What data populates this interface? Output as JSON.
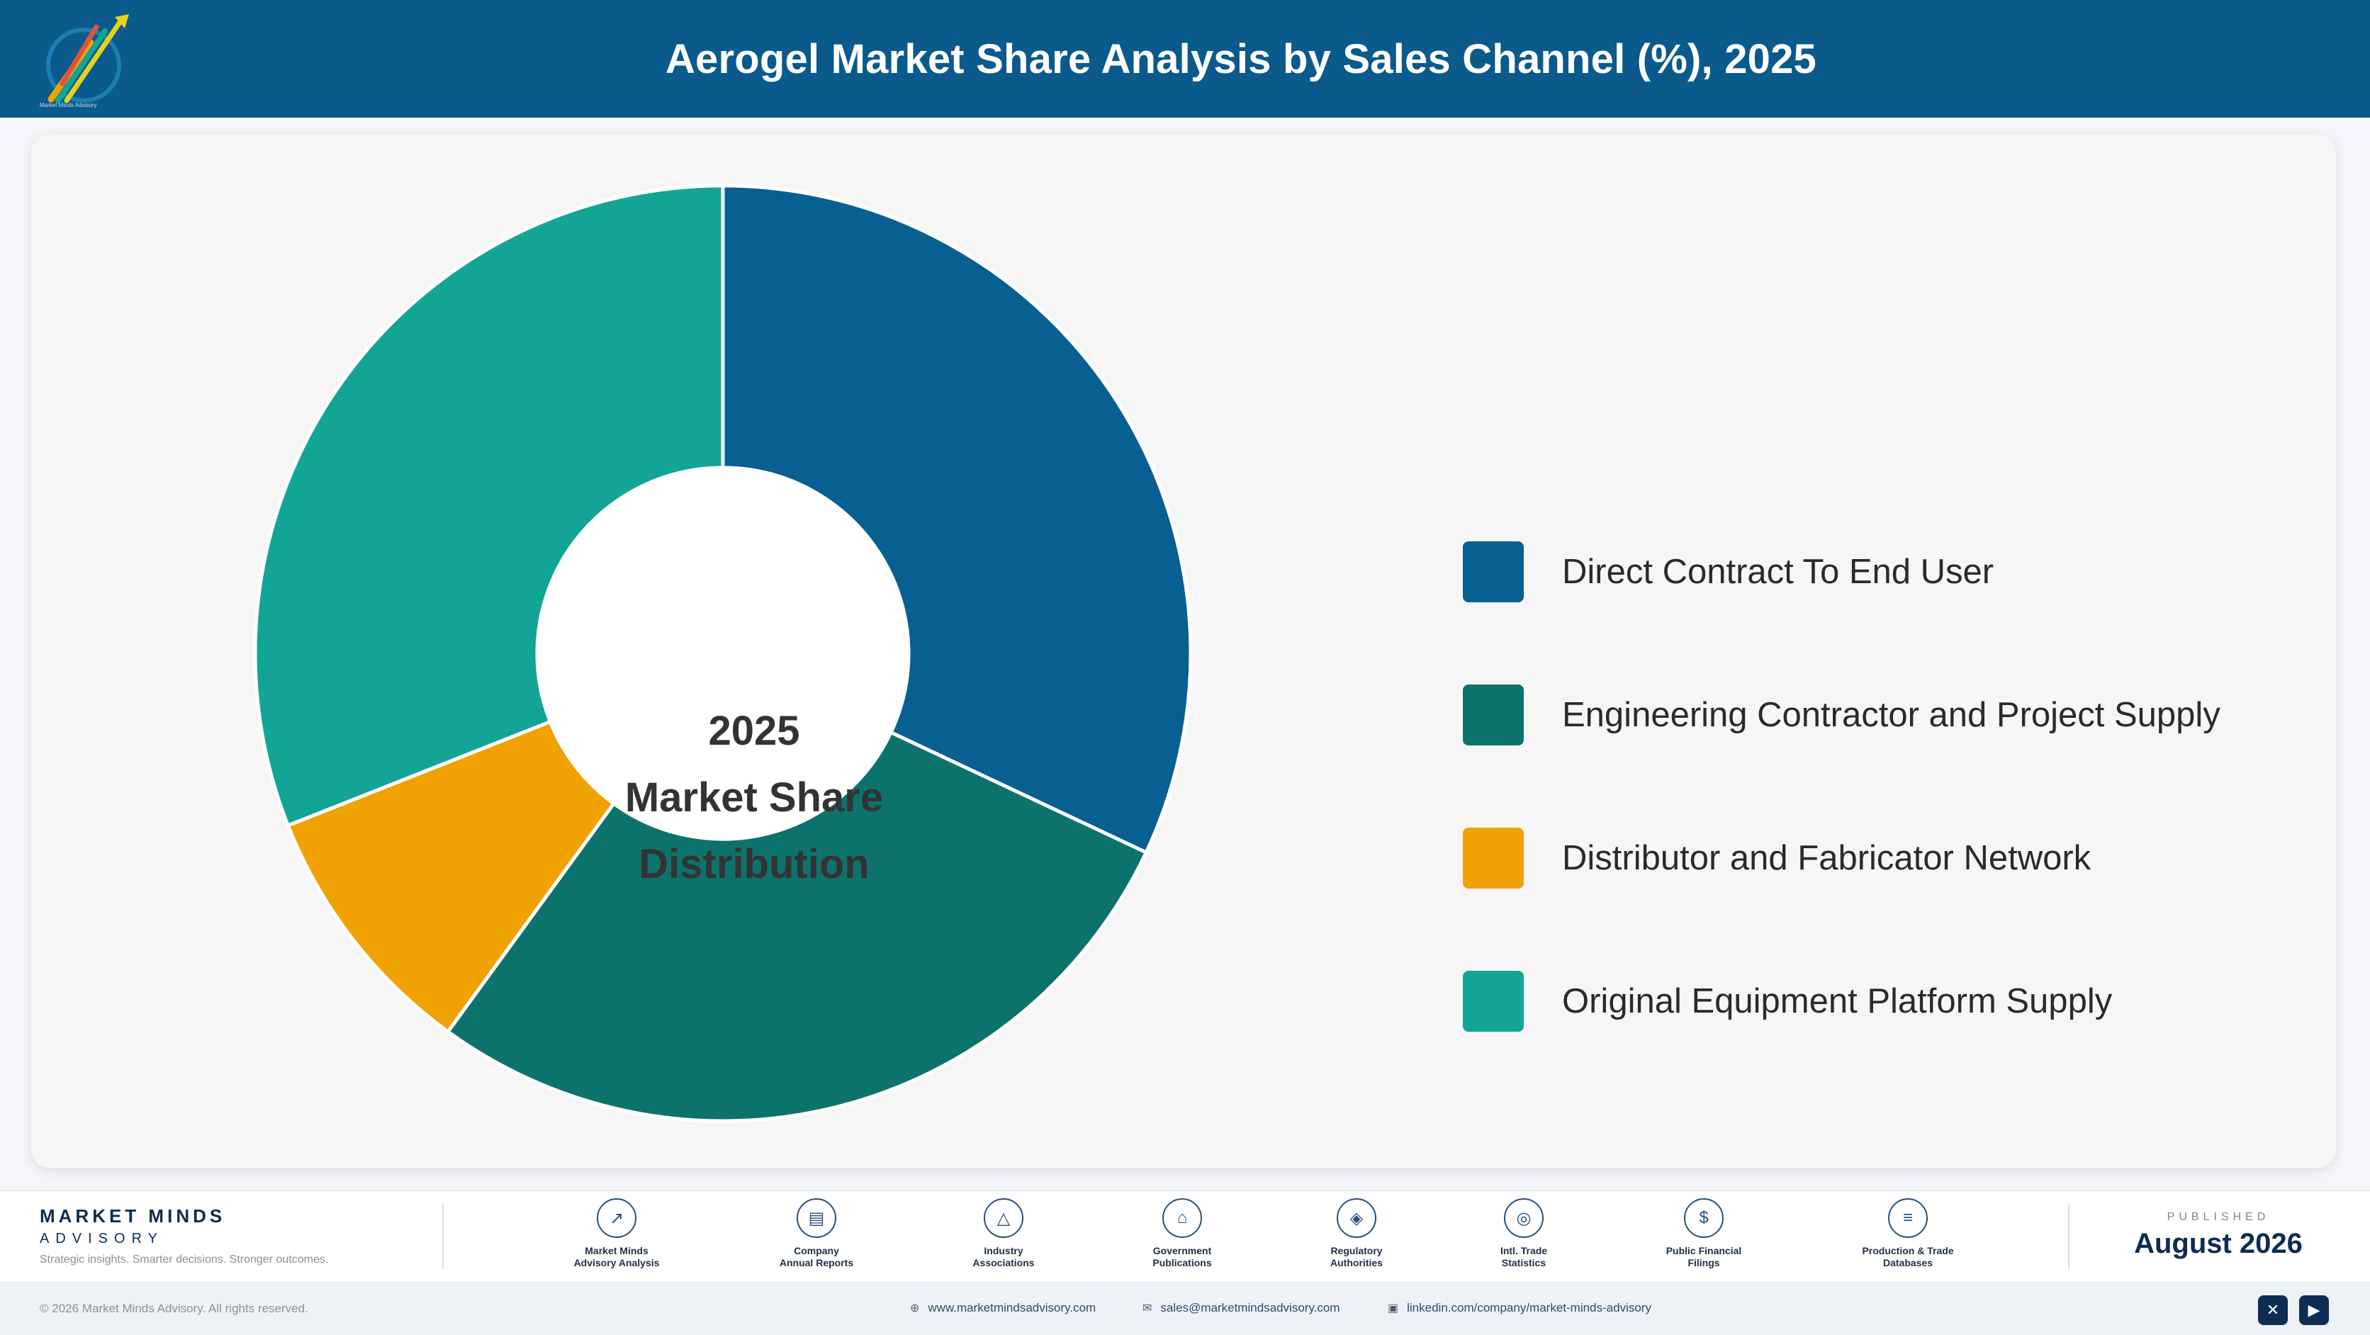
{
  "header": {
    "title": "Aerogel Market Share Analysis by Sales Channel (%), 2025",
    "logo_caption": "Market Minds Advisory"
  },
  "chart_data": {
    "type": "pie",
    "title": "Aerogel Market Share Analysis by Sales Channel (%), 2025",
    "center_label": [
      "2025",
      "Market Share",
      "Distribution"
    ],
    "categories": [
      "Direct Contract To End User",
      "Engineering Contractor and Project Supply",
      "Distributor and Fabricator Network",
      "Original Equipment Platform Supply"
    ],
    "values": [
      32,
      28,
      9,
      31
    ],
    "unit": "%",
    "colors": [
      "#075f92",
      "#0c736c",
      "#f0a202",
      "#12a595"
    ],
    "legend_position": "right",
    "donut": true
  },
  "footer": {
    "brand_name": "MARKET MINDS",
    "brand_sub": "ADVISORY",
    "tagline": "Strategic insights. Smarter decisions. Stronger outcomes.",
    "sources": [
      {
        "label_line1": "Market Minds",
        "label_line2": "Advisory Analysis",
        "icon": "chart-line-icon",
        "glyph": "↗"
      },
      {
        "label_line1": "Company",
        "label_line2": "Annual Reports",
        "icon": "document-icon",
        "glyph": "▤"
      },
      {
        "label_line1": "Industry",
        "label_line2": "Associations",
        "icon": "network-icon",
        "glyph": "△"
      },
      {
        "label_line1": "Government",
        "label_line2": "Publications",
        "icon": "building-icon",
        "glyph": "⌂"
      },
      {
        "label_line1": "Regulatory",
        "label_line2": "Authorities",
        "icon": "shield-icon",
        "glyph": "◈"
      },
      {
        "label_line1": "Intl. Trade",
        "label_line2": "Statistics",
        "icon": "globe-icon",
        "glyph": "◎"
      },
      {
        "label_line1": "Public Financial",
        "label_line2": "Filings",
        "icon": "dollar-icon",
        "glyph": "$"
      },
      {
        "label_line1": "Production & Trade",
        "label_line2": "Databases",
        "icon": "database-icon",
        "glyph": "≡"
      }
    ],
    "published_label": "PUBLISHED",
    "published_date": "August 2026",
    "copyright": "© 2026 Market Minds Advisory. All rights reserved.",
    "website": "www.marketmindsadvisory.com",
    "email": "sales@marketmindsadvisory.com",
    "linkedin": "linkedin.com/company/market-minds-advisory",
    "social_x_glyph": "✕",
    "social_yt_glyph": "▶"
  }
}
